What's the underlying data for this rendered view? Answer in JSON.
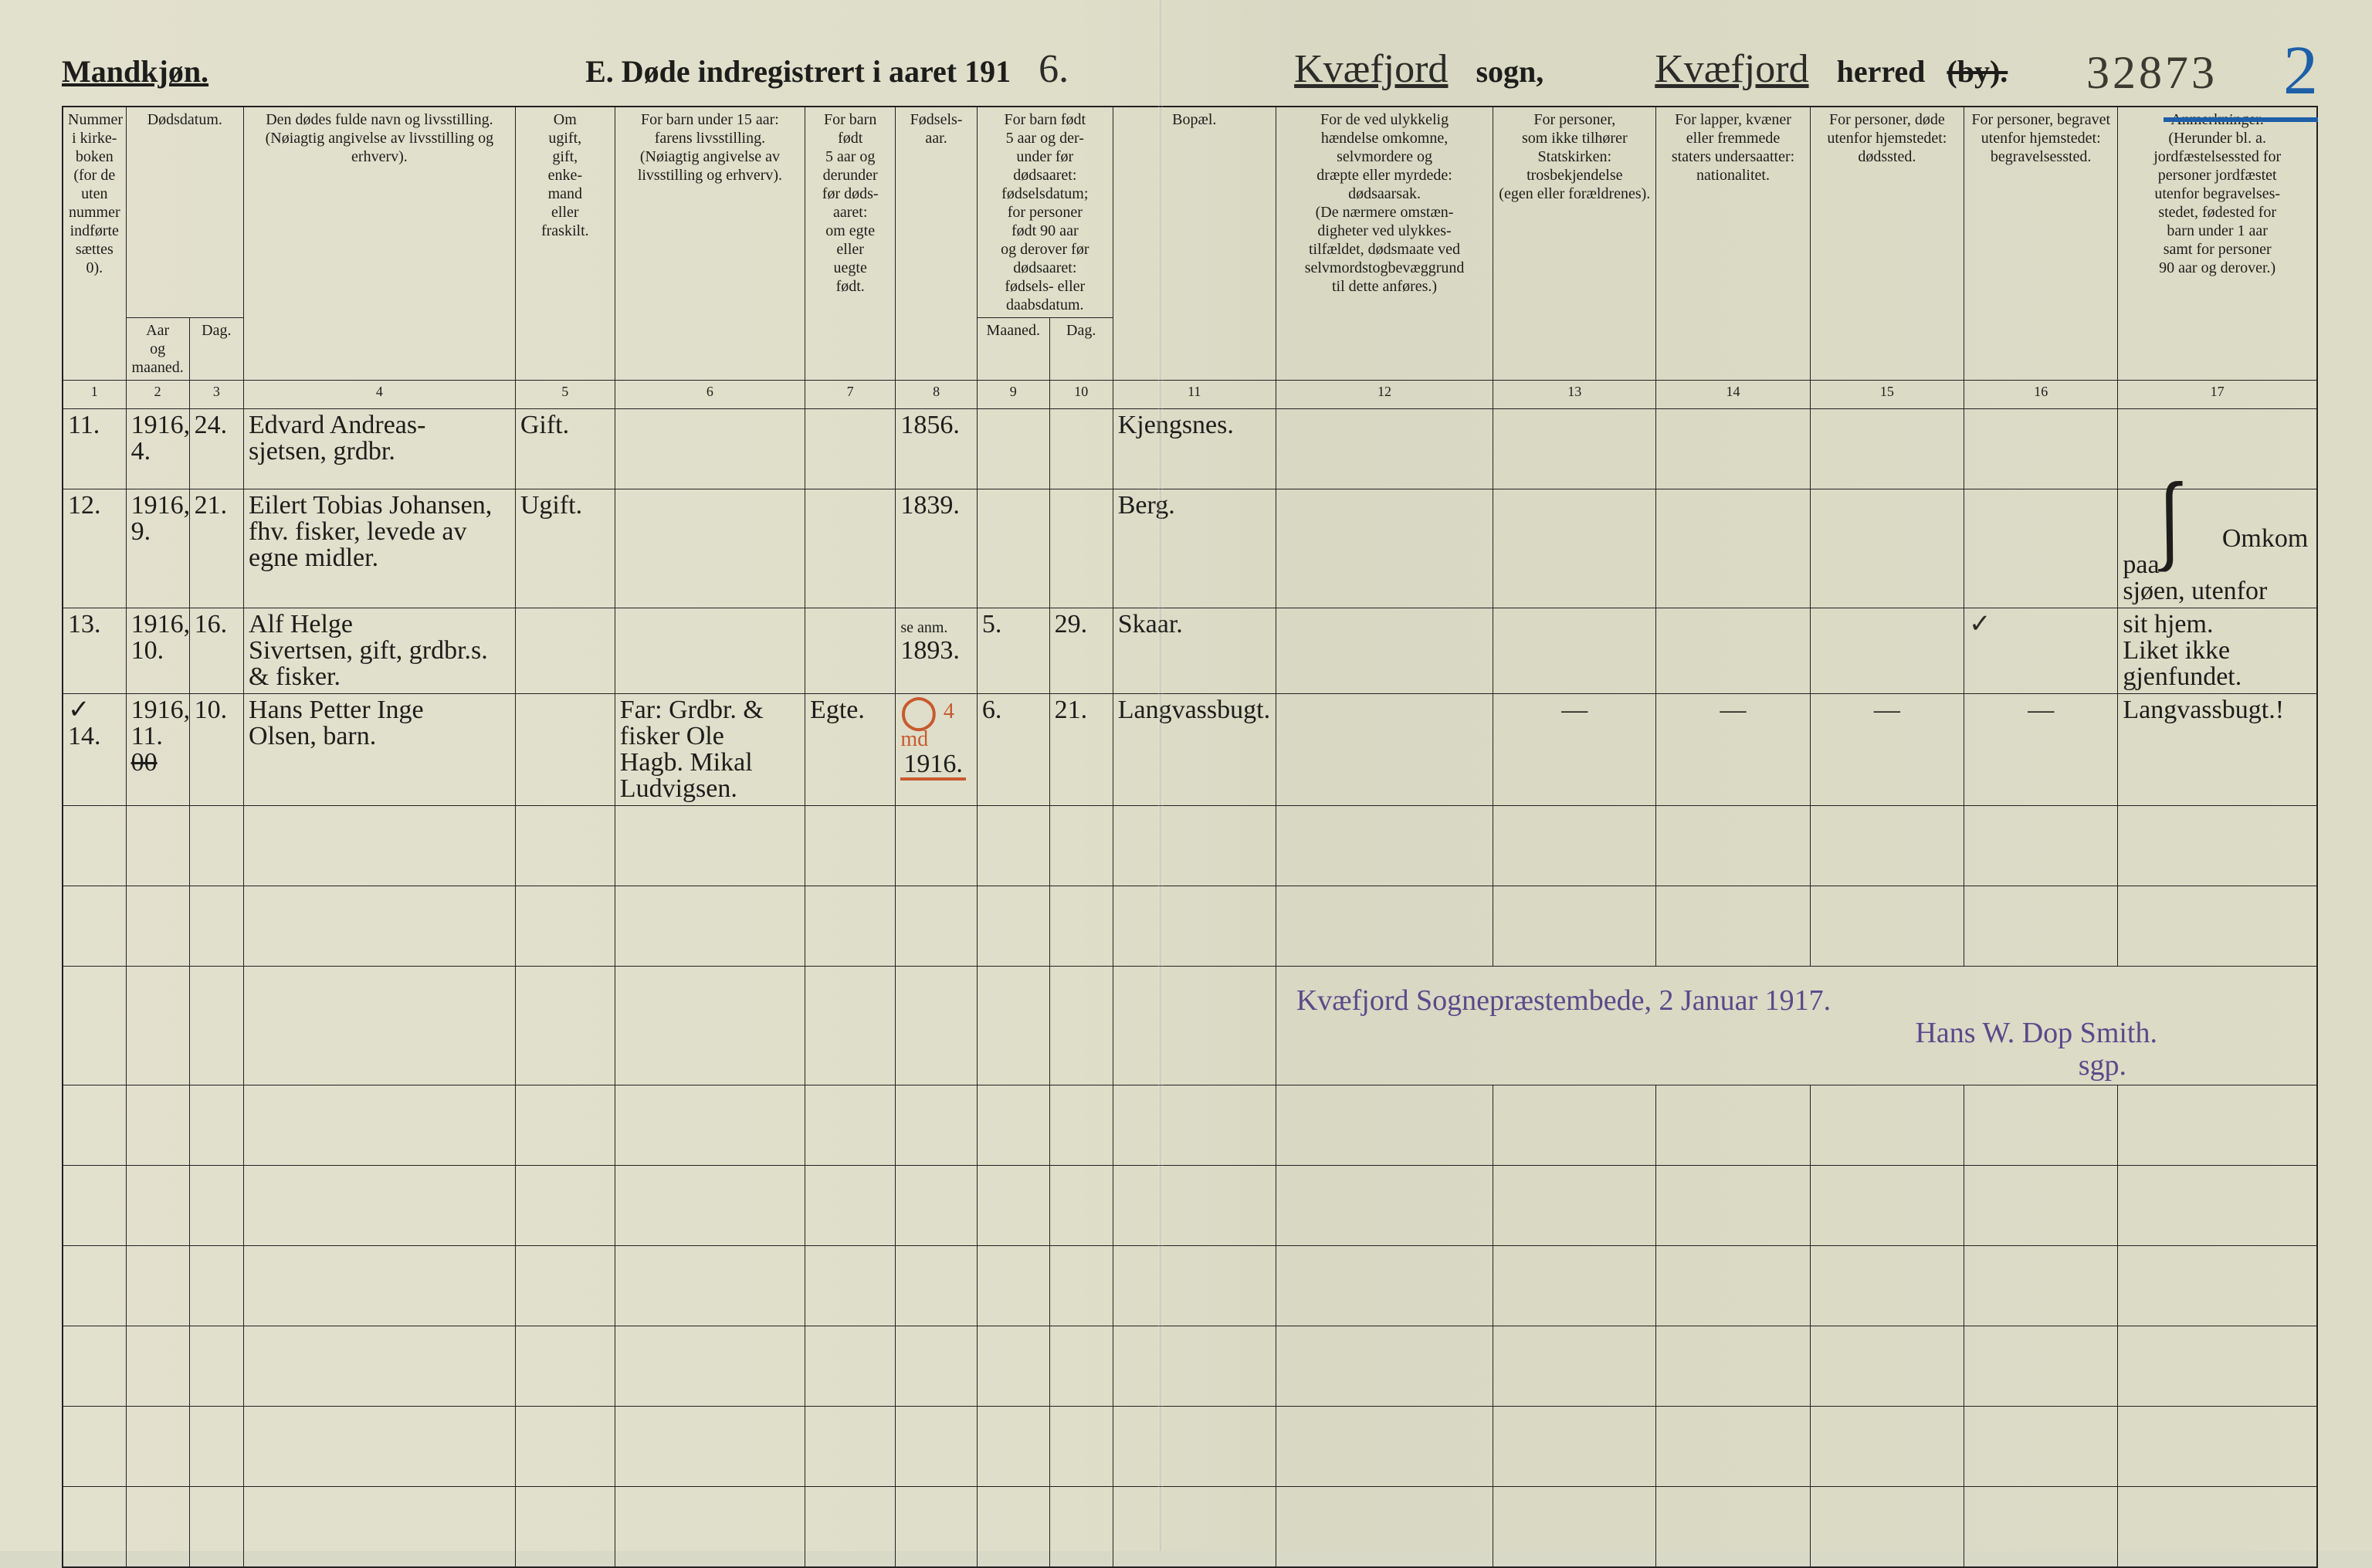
{
  "header": {
    "sex": "Mandkjøn.",
    "title_prefix": "E.  Døde indregistrert i aaret 191",
    "year_digit": "6.",
    "sogn_value": "Kvæfjord",
    "sogn_label": "sogn,",
    "herred_value": "Kvæfjord",
    "herred_label": "herred",
    "herred_strike": "(by).",
    "archive": "32873",
    "blue_page": "2"
  },
  "columns": {
    "h1": "Nummer i kirke-\nboken\n(for de\nuten\nnummer\nindførte\nsættes\n0).",
    "h2": "Dødsdatum.",
    "h2a": "Aar\nog\nmaaned.",
    "h2b": "Dag.",
    "h4": "Den dødes fulde navn og livsstilling.\n(Nøiagtig angivelse av livsstilling og erhverv).",
    "h5": "Om\nugift,\ngift,\nenke-\nmand\neller\nfraskilt.",
    "h6": "For barn under 15 aar:\nfarens livsstilling.\n(Nøiagtig angivelse av\nlivsstilling og erhverv).",
    "h7": "For barn\nfødt\n5 aar og\nderunder\nfør døds-\naaret:\nom egte\neller\nuegte\nfødt.",
    "h8": "Fødsels-\naar.",
    "h9_10": "For barn født\n5 aar og der-\nunder før\ndødsaaret:\nfødselsdatum;\nfor personer\nfødt 90 aar\nog derover før\ndødsaaret:\nfødsels- eller\ndaabsdatum.",
    "h9": "Maaned.",
    "h10": "Dag.",
    "h11": "Bopæl.",
    "h12": "For de ved ulykkelig\nhændelse omkomne,\nselvmordere og\ndræpte eller myrdede:\ndødsaarsak.\n(De nærmere omstæn-\ndigheter ved ulykkes-\ntilfældet, dødsmaate ved\nselvmordstogbevæggrund\ntil dette anføres.)",
    "h13": "For personer,\nsom ikke tilhører\nStatskirken:\ntrosbekjendelse\n(egen eller forældrenes).",
    "h14": "For lapper, kvæner\neller fremmede\nstaters undersaatter:\nnationalitet.",
    "h15": "For personer, døde\nutenfor hjemstedet:\ndødssted.",
    "h16": "For personer, begravet\nutenfor hjemstedet:\nbegravelsessted.",
    "h17": "Anmerkninger.\n(Herunder bl. a.\njordfæstelsessted for\npersoner jordfæstet\nutenfor begravelses-\nstedet, fødested for\nbarn under 1 aar\nsamt for personer\n90 aar og derover.)"
  },
  "colnums": [
    "1",
    "2",
    "3",
    "4",
    "5",
    "6",
    "7",
    "8",
    "9",
    "10",
    "11",
    "12",
    "13",
    "14",
    "15",
    "16",
    "17"
  ],
  "rows": [
    {
      "n": "11.",
      "ym": "1916,\n4.",
      "d": "24.",
      "name": "Edvard Andreas-\nsjetsen, grdbr.",
      "civ": "Gift.",
      "parent": "",
      "egte": "",
      "byear": "1856.",
      "bm": "",
      "bd": "",
      "res": "Kjengsnes.",
      "c12": "",
      "c13": "",
      "c14": "",
      "c15": "",
      "c16": "",
      "c17": ""
    },
    {
      "n": "12.",
      "ym": "1916,\n9.",
      "d": "21.",
      "name": "Eilert Tobias Johansen,\nfhv. fisker, levede av egne midler.",
      "civ": "Ugift.",
      "parent": "",
      "egte": "",
      "byear": "1839.",
      "bm": "",
      "bd": "",
      "res": "Berg.",
      "c12": "",
      "c13": "",
      "c14": "",
      "c15": "",
      "c16": "",
      "c17": "Omkom paa\nsjøen, utenfor"
    },
    {
      "n": "13.",
      "ym": "1916,\n10.",
      "d": "16.",
      "name": "Alf Helge\nSivertsen, gift, grdbr.s. & fisker.",
      "civ": "",
      "parent": "",
      "egte": "",
      "byear": "1893.",
      "byear_note": "se anm.",
      "bm": "5.",
      "bd": "29.",
      "res": "Skaar.",
      "c12": "",
      "c13": "",
      "c14": "",
      "c15": "",
      "c16_check": "✓",
      "c17": "sit hjem.\nLiket ikke\ngjenfundet."
    },
    {
      "n": "14.",
      "n_tick": "✓",
      "ym": "1916,\n11.",
      "ym_strike": "00",
      "d": "10.",
      "name": "Hans Petter Inge\nOlsen, barn.",
      "civ": "",
      "parent": "Far: Grdbr. &\nfisker Ole\nHagb. Mikal Ludvigsen.",
      "egte": "Egte.",
      "byear": "1916.",
      "red_o": true,
      "red_note": "4 md",
      "bm": "6.",
      "bd": "21.",
      "res": "Langvassbugt.",
      "c12": "",
      "c13": "—",
      "c14": "—",
      "c15": "—",
      "c16": "—",
      "c17": "Langvassbugt.!"
    }
  ],
  "signature": {
    "line1": "Kvæfjord Sognepræstembede, 2 Januar 1917.",
    "line2": "Hans W. Dop Smith.",
    "line3": "sgp."
  }
}
